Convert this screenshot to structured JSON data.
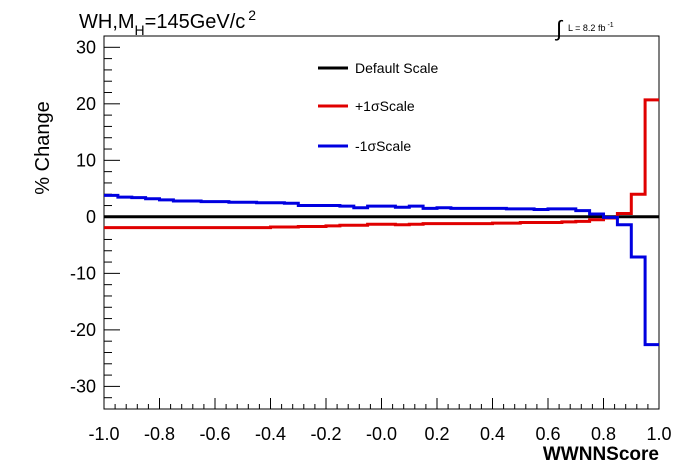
{
  "chart_data": {
    "type": "line",
    "step": true,
    "title": {
      "main": "WH,M",
      "sub": "H",
      "rest": "=145GeV/c",
      "sup": "2"
    },
    "lumi": {
      "integral": "∫",
      "text": "L = 8.2 fb",
      "sup": "-1"
    },
    "xlabel": "WWNNScore",
    "ylabel": "% Change",
    "xlim": [
      -1.0,
      1.0
    ],
    "ylim": [
      -34,
      32
    ],
    "x_ticks": [
      "-1.0",
      "-0.8",
      "-0.6",
      "-0.4",
      "-0.2",
      "-0.0",
      "0.2",
      "0.4",
      "0.6",
      "0.8",
      "1.0"
    ],
    "x_tick_values": [
      -1.0,
      -0.8,
      -0.6,
      -0.4,
      -0.2,
      0.0,
      0.2,
      0.4,
      0.6,
      0.8,
      1.0
    ],
    "y_ticks": [
      "-30",
      "-20",
      "-10",
      "0",
      "10",
      "20",
      "30"
    ],
    "y_tick_values": [
      -30,
      -20,
      -10,
      0,
      10,
      20,
      30
    ],
    "bin_edges": [
      -1.0,
      -0.95,
      -0.9,
      -0.85,
      -0.8,
      -0.75,
      -0.7,
      -0.65,
      -0.6,
      -0.55,
      -0.5,
      -0.45,
      -0.4,
      -0.35,
      -0.3,
      -0.25,
      -0.2,
      -0.15,
      -0.1,
      -0.05,
      0.0,
      0.05,
      0.1,
      0.15,
      0.2,
      0.25,
      0.3,
      0.35,
      0.4,
      0.45,
      0.5,
      0.55,
      0.6,
      0.65,
      0.7,
      0.75,
      0.8,
      0.85,
      0.9,
      0.95,
      1.0
    ],
    "series": [
      {
        "name": "Default Scale",
        "color": "#000000",
        "values": [
          0,
          0,
          0,
          0,
          0,
          0,
          0,
          0,
          0,
          0,
          0,
          0,
          0,
          0,
          0,
          0,
          0,
          0,
          0,
          0,
          0,
          0,
          0,
          0,
          0,
          0,
          0,
          0,
          0,
          0,
          0,
          0,
          0,
          0,
          0,
          0,
          0,
          0,
          0,
          0
        ]
      },
      {
        "name": "+1σScale",
        "color": "#e00000",
        "values": [
          -1.9,
          -1.9,
          -1.9,
          -1.9,
          -1.9,
          -1.9,
          -1.9,
          -1.9,
          -1.9,
          -1.9,
          -1.9,
          -1.9,
          -1.8,
          -1.8,
          -1.7,
          -1.7,
          -1.6,
          -1.5,
          -1.5,
          -1.3,
          -1.3,
          -1.4,
          -1.3,
          -1.2,
          -1.2,
          -1.2,
          -1.2,
          -1.2,
          -1.1,
          -1.1,
          -1.0,
          -1.0,
          -1.0,
          -0.9,
          -0.8,
          -0.5,
          -0.2,
          0.6,
          4.0,
          20.7
        ]
      },
      {
        "name": "-1σScale",
        "color": "#0000e0",
        "values": [
          3.8,
          3.5,
          3.4,
          3.2,
          3.0,
          2.8,
          2.8,
          2.7,
          2.7,
          2.6,
          2.6,
          2.5,
          2.5,
          2.4,
          2.0,
          2.0,
          2.0,
          1.9,
          1.6,
          1.9,
          1.9,
          1.7,
          1.9,
          1.5,
          1.6,
          1.5,
          1.5,
          1.5,
          1.5,
          1.4,
          1.4,
          1.3,
          1.4,
          1.4,
          1.1,
          0.5,
          -0.1,
          -1.4,
          -7.1,
          -22.6
        ]
      }
    ],
    "legend_position": "top-center",
    "grid": false
  }
}
